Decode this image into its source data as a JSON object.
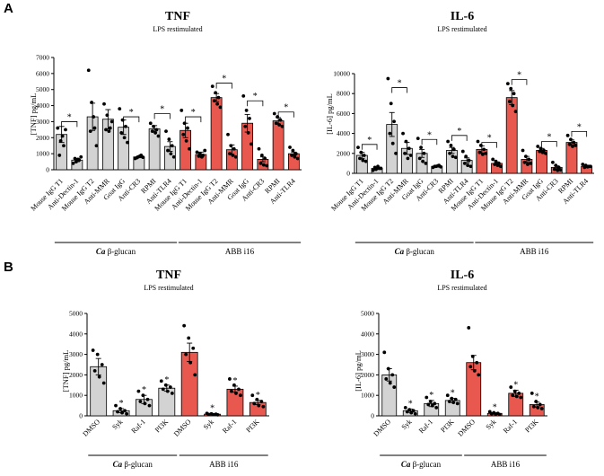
{
  "colors": {
    "gray": "#d3d3d3",
    "red": "#e8584f",
    "edge": "#000000"
  },
  "panel_labels": [
    "A",
    "B"
  ],
  "chart_data": [
    {
      "id": "A-TNF",
      "type": "bar",
      "panel": "A",
      "title": "TNF",
      "subtitle": "LPS restimulated",
      "ylabel": "[TNF] pg/mL",
      "ylim": [
        0,
        7000
      ],
      "yticks": [
        "0",
        "1000",
        "2000",
        "3000",
        "4000",
        "5000",
        "6000",
        "7000"
      ],
      "categories": [
        "Mouse IgG T1",
        "Anti-Dectin-1",
        "Mouse IgG T2",
        "Anti-MMR",
        "Goat IgG",
        "Anti-CR3",
        "RPMI",
        "Anti-TLR4",
        "Mouse IgG T1",
        "Anti-Dectin-1",
        "Mouse IgG T2",
        "Anti-MMR",
        "Goat IgG",
        "Anti-CR3",
        "RPMI",
        "Anti-TLR4"
      ],
      "values": [
        2200,
        600,
        3300,
        3150,
        2650,
        800,
        2550,
        1450,
        2450,
        950,
        4500,
        1250,
        2900,
        650,
        3050,
        1000
      ],
      "errors": [
        500,
        100,
        850,
        600,
        450,
        50,
        200,
        300,
        450,
        150,
        250,
        300,
        550,
        150,
        200,
        100
      ],
      "colors": [
        "gray",
        "gray",
        "gray",
        "gray",
        "gray",
        "gray",
        "gray",
        "gray",
        "red",
        "red",
        "red",
        "red",
        "red",
        "red",
        "red",
        "red"
      ],
      "points": [
        [
          2600,
          1800,
          1500,
          900,
          2100,
          2500
        ],
        [
          400,
          500,
          600,
          700,
          650,
          800
        ],
        [
          6200,
          4200,
          2600,
          2400,
          3300,
          1500
        ],
        [
          4100,
          3400,
          2600,
          2500,
          2400,
          3000
        ],
        [
          3800,
          3100,
          2700,
          2300,
          2000,
          1700
        ],
        [
          700,
          800,
          900,
          750,
          850,
          780
        ],
        [
          2900,
          2700,
          2500,
          2400,
          2300,
          2100
        ],
        [
          2400,
          1900,
          1500,
          1200,
          1000,
          800
        ],
        [
          3700,
          2900,
          2600,
          2200,
          1800,
          1300
        ],
        [
          1100,
          1000,
          900,
          850,
          800,
          1200
        ],
        [
          5200,
          4800,
          4500,
          4300,
          4100,
          3900
        ],
        [
          2200,
          1500,
          1300,
          1000,
          900,
          800
        ],
        [
          4600,
          3700,
          3200,
          2700,
          2300,
          1600
        ],
        [
          1300,
          900,
          700,
          400,
          300,
          250
        ],
        [
          3500,
          3300,
          3100,
          2900,
          2800,
          2700
        ],
        [
          1400,
          1200,
          1000,
          900,
          800,
          700
        ]
      ],
      "brackets": [
        [
          0,
          1
        ],
        [
          4,
          5
        ],
        [
          6,
          7
        ],
        [
          8,
          9
        ],
        [
          10,
          11
        ],
        [
          12,
          13
        ],
        [
          14,
          15
        ]
      ],
      "bracket_y": [
        3000,
        3300,
        3500,
        3300,
        5400,
        4300,
        3600
      ],
      "groups": [
        {
          "label_italic": "Ca",
          "label_rest": " β-glucan",
          "from": 0,
          "to": 7
        },
        {
          "label_italic": "",
          "label_rest": "ABB i16",
          "from": 8,
          "to": 15
        }
      ]
    },
    {
      "id": "A-IL6",
      "type": "bar",
      "panel": "A",
      "title": "IL-6",
      "subtitle": "LPS restimulated",
      "ylabel": "[IL-6] pg/mL",
      "ylim": [
        0,
        10000
      ],
      "yticks": [
        "0",
        "2000",
        "4000",
        "6000",
        "8000",
        "10000"
      ],
      "categories": [
        "Mouse IgG T1",
        "Anti-Dectin-1",
        "Mouse IgG T2",
        "Anti-MMR",
        "Goat IgG",
        "Anti-CR3",
        "RPMI",
        "Anti-TLR4",
        "Mouse IgG T1",
        "Anti-Dectin-1",
        "Mouse IgG T2",
        "Anti-MMR",
        "Goat IgG",
        "Anti-CR3",
        "RPMI",
        "Anti-TLR4"
      ],
      "values": [
        1800,
        500,
        4900,
        2500,
        2000,
        700,
        2300,
        1300,
        2400,
        1000,
        7600,
        1400,
        2300,
        600,
        3100,
        700
      ],
      "errors": [
        300,
        100,
        1200,
        600,
        400,
        80,
        300,
        250,
        350,
        150,
        700,
        300,
        200,
        150,
        250,
        100
      ],
      "colors": [
        "gray",
        "gray",
        "gray",
        "gray",
        "gray",
        "gray",
        "gray",
        "gray",
        "red",
        "red",
        "red",
        "red",
        "red",
        "red",
        "red",
        "red"
      ],
      "points": [
        [
          2600,
          2100,
          1800,
          1500,
          1300,
          1200
        ],
        [
          300,
          400,
          500,
          600,
          700,
          500
        ],
        [
          9500,
          7000,
          5200,
          4000,
          3000,
          2000
        ],
        [
          4000,
          3200,
          2500,
          2000,
          1500,
          1800
        ],
        [
          3500,
          2600,
          2000,
          1500,
          1200,
          1000
        ],
        [
          600,
          700,
          800,
          700,
          750,
          650
        ],
        [
          3200,
          2800,
          2400,
          2000,
          1700,
          1600
        ],
        [
          2200,
          1700,
          1300,
          1000,
          800,
          700
        ],
        [
          3200,
          2800,
          2400,
          2100,
          1900,
          2000
        ],
        [
          1400,
          1200,
          1000,
          900,
          800,
          700
        ],
        [
          9000,
          8500,
          8000,
          7200,
          6800,
          6200
        ],
        [
          2300,
          1700,
          1400,
          1100,
          900,
          1000
        ],
        [
          2700,
          2500,
          2300,
          2200,
          2100,
          2000
        ],
        [
          1100,
          800,
          600,
          400,
          300,
          350
        ],
        [
          3800,
          3400,
          3100,
          2900,
          2700,
          2800
        ],
        [
          900,
          800,
          700,
          600,
          650,
          700
        ]
      ],
      "brackets": [
        [
          0,
          1
        ],
        [
          2,
          3
        ],
        [
          4,
          5
        ],
        [
          6,
          7
        ],
        [
          8,
          9
        ],
        [
          10,
          11
        ],
        [
          12,
          13
        ],
        [
          14,
          15
        ]
      ],
      "bracket_y": [
        2900,
        8600,
        3400,
        3800,
        3100,
        9400,
        3200,
        4200
      ],
      "groups": [
        {
          "label_italic": "Ca",
          "label_rest": " β-glucan",
          "from": 0,
          "to": 7
        },
        {
          "label_italic": "",
          "label_rest": "ABB i16",
          "from": 8,
          "to": 15
        }
      ]
    },
    {
      "id": "B-TNF",
      "type": "bar",
      "panel": "B",
      "title": "TNF",
      "subtitle": "LPS restimulated",
      "ylabel": "[TNF] pg/mL",
      "ylim": [
        0,
        5000
      ],
      "yticks": [
        "0",
        "1000",
        "2000",
        "3000",
        "4000",
        "5000"
      ],
      "categories": [
        "DMSO",
        "Syk",
        "Raf-1",
        "PI3K",
        "DMSO",
        "Syk",
        "Raf-1",
        "PI3K"
      ],
      "values": [
        2400,
        250,
        800,
        1350,
        3100,
        80,
        1300,
        650
      ],
      "errors": [
        400,
        100,
        200,
        150,
        450,
        30,
        150,
        100
      ],
      "colors": [
        "gray",
        "gray",
        "gray",
        "gray",
        "red",
        "red",
        "red",
        "red"
      ],
      "points": [
        [
          3200,
          3000,
          2500,
          2200,
          1900,
          1600
        ],
        [
          500,
          350,
          250,
          200,
          150,
          100
        ],
        [
          1200,
          1000,
          800,
          700,
          600,
          500
        ],
        [
          1700,
          1500,
          1400,
          1300,
          1200,
          1100
        ],
        [
          4400,
          3800,
          3300,
          3000,
          2600,
          2000
        ],
        [
          120,
          100,
          80,
          70,
          60,
          50
        ],
        [
          1800,
          1500,
          1300,
          1200,
          1100,
          1000
        ],
        [
          1000,
          800,
          700,
          600,
          500,
          450
        ]
      ],
      "stars": [
        false,
        true,
        true,
        true,
        false,
        true,
        true,
        true
      ],
      "brackets": [],
      "bracket_y": [],
      "groups": [
        {
          "label_italic": "Ca",
          "label_rest": " β-glucan",
          "from": 0,
          "to": 3
        },
        {
          "label_italic": "",
          "label_rest": "ABB i16",
          "from": 4,
          "to": 7
        }
      ]
    },
    {
      "id": "B-IL6",
      "type": "bar",
      "panel": "B",
      "title": "IL-6",
      "subtitle": "LPS restimulated",
      "ylabel": "[IL-6] pg/mL",
      "ylim": [
        0,
        5000
      ],
      "yticks": [
        "0",
        "1000",
        "2000",
        "3000",
        "4000",
        "5000"
      ],
      "categories": [
        "DMSO",
        "Syk",
        "Raf-1",
        "PI3K",
        "DMSO",
        "Syk",
        "Raf-1",
        "PI3K"
      ],
      "values": [
        2000,
        250,
        600,
        750,
        2600,
        120,
        1100,
        550
      ],
      "errors": [
        300,
        80,
        150,
        100,
        350,
        30,
        150,
        120
      ],
      "colors": [
        "gray",
        "gray",
        "gray",
        "gray",
        "red",
        "red",
        "red",
        "red"
      ],
      "points": [
        [
          3100,
          2300,
          2000,
          1800,
          1600,
          1400
        ],
        [
          400,
          300,
          250,
          200,
          150,
          100
        ],
        [
          900,
          700,
          600,
          550,
          500,
          400
        ],
        [
          1000,
          850,
          800,
          700,
          650,
          600
        ],
        [
          4300,
          2900,
          2600,
          2400,
          2200,
          2000
        ],
        [
          200,
          150,
          120,
          100,
          80,
          60
        ],
        [
          1400,
          1200,
          1100,
          1000,
          950,
          900
        ],
        [
          1100,
          700,
          550,
          450,
          400,
          350
        ]
      ],
      "stars": [
        false,
        true,
        true,
        true,
        false,
        true,
        true,
        true
      ],
      "brackets": [],
      "bracket_y": [],
      "groups": [
        {
          "label_italic": "Ca",
          "label_rest": " β-glucan",
          "from": 0,
          "to": 3
        },
        {
          "label_italic": "",
          "label_rest": "ABB i16",
          "from": 4,
          "to": 7
        }
      ]
    }
  ]
}
